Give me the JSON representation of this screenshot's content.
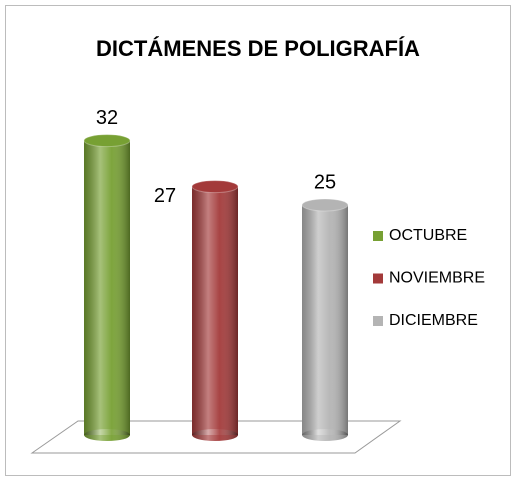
{
  "chart_data": {
    "type": "bar",
    "title": "DICTÁMENES  DE POLIGRAFÍA",
    "categories": [
      null
    ],
    "series": [
      {
        "name": "OCTUBRE",
        "color": "#77a033",
        "values": [
          32
        ]
      },
      {
        "name": "NOVIEMBRE",
        "color": "#a33a3a",
        "values": [
          27
        ]
      },
      {
        "name": "DICIEMBRE",
        "color": "#b4b4b4",
        "values": [
          25
        ]
      }
    ],
    "legend": "right"
  }
}
